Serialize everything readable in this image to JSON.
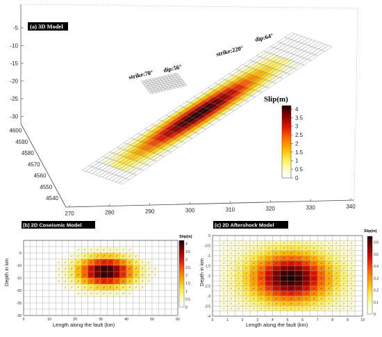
{
  "chart_data": [
    {
      "type": "heatmap",
      "panel_label": "(a) 3D Model",
      "z_ticks": [
        "-5",
        "-10",
        "-15",
        "-20",
        "-25",
        "-30"
      ],
      "y_ticks": [
        "4600",
        "4590",
        "4580",
        "4570",
        "4560",
        "4550",
        "4540"
      ],
      "x_ticks": [
        "270",
        "280",
        "290",
        "300",
        "310",
        "320",
        "330",
        "340"
      ],
      "annotations": [
        "strike:70°",
        "dip:56°",
        "strike:220°",
        "dip:64°"
      ],
      "colorbar": {
        "label": "Slip(m)",
        "ticks": [
          "4",
          "3.5",
          "3",
          "2.5",
          "2",
          "1.5",
          "1",
          "0.5",
          "0"
        ],
        "range": [
          0,
          4.2
        ]
      },
      "peak_slip": 4.2
    },
    {
      "type": "heatmap",
      "panel_label": "(b) 2D Coseismic Model",
      "xlabel": "Length along the fault (km)",
      "ylabel": "Depth in km",
      "x_ticks": [
        "0",
        "10",
        "20",
        "30",
        "40",
        "50",
        "60"
      ],
      "y_ticks": [
        "-5",
        "-10",
        "-15",
        "-20",
        "-25",
        "-30"
      ],
      "xlim": [
        0,
        60
      ],
      "ylim": [
        -30,
        0
      ],
      "colorbar": {
        "label": "Slip(m)",
        "ticks": [
          "4",
          "3.5",
          "3",
          "2.5",
          "2",
          "1.5",
          "1",
          "0.5",
          "0"
        ],
        "range": [
          0,
          4.2
        ]
      },
      "grid_cols": 24,
      "grid_rows": 12,
      "peak": {
        "x": 32,
        "y": -12.5,
        "value": 4.2
      },
      "extent": {
        "x0": 5,
        "x1": 56,
        "y0": -24,
        "y1": -3
      }
    },
    {
      "type": "heatmap",
      "panel_label": "(c) 2D Aftershock Model",
      "xlabel": "Length along the fault (km)",
      "ylabel": "Depth in km",
      "x_ticks": [
        "0",
        "1",
        "2",
        "3",
        "4",
        "5",
        "6",
        "7",
        "8",
        "9",
        "10"
      ],
      "y_ticks": [
        "0",
        "-0.5",
        "-1",
        "-1.5",
        "-2",
        "-2.5",
        "-3",
        "-3.5",
        "-4"
      ],
      "xlim": [
        0,
        10
      ],
      "ylim": [
        -4,
        0
      ],
      "colorbar": {
        "label": "Slip(m)",
        "ticks": [
          "0.6",
          "0.5",
          "0.4",
          "0.3",
          "0.2",
          "0.1",
          "0"
        ],
        "range": [
          0,
          0.65
        ]
      },
      "grid_cols": 20,
      "grid_rows": 16,
      "peak": {
        "x": 5.2,
        "y": -2.1,
        "value": 0.65
      },
      "extent": {
        "x0": 0.5,
        "x1": 9.5,
        "y0": -3.75,
        "y1": -0.25
      }
    }
  ]
}
